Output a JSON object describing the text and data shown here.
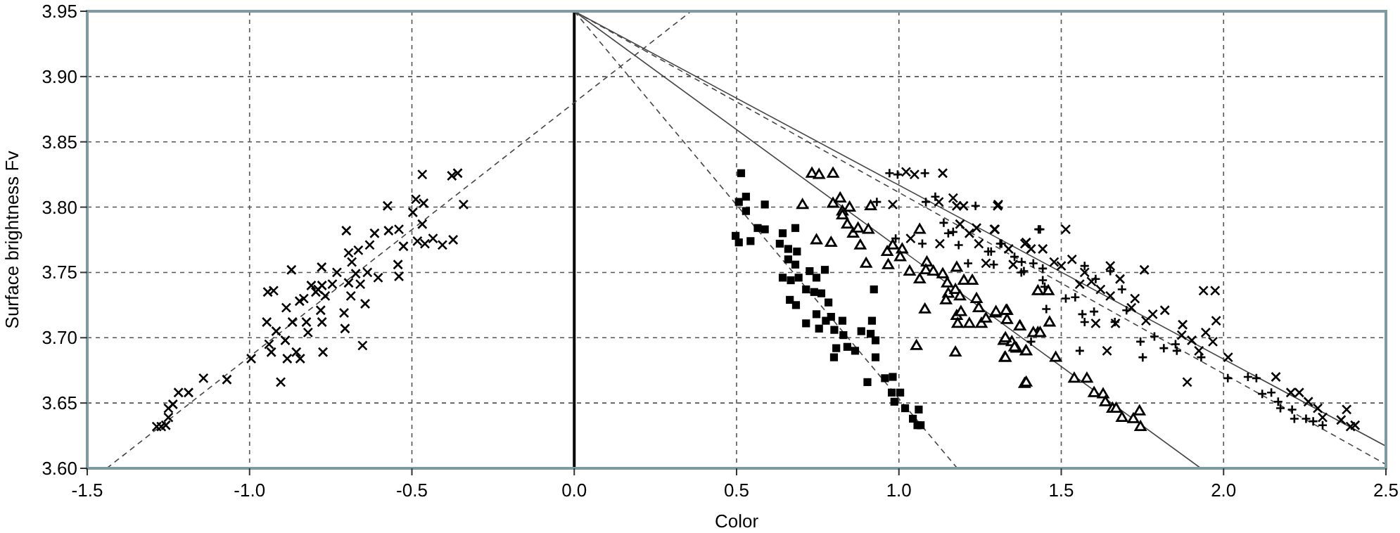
{
  "chart_data": {
    "type": "scatter",
    "xlabel": "Color",
    "ylabel": "Surface brightness Fv",
    "xlim": [
      -1.5,
      2.5
    ],
    "ylim": [
      3.6,
      3.95
    ],
    "xticks": [
      -1.5,
      {
        "value": -1,
        "label": "-1.0"
      },
      -0.5,
      {
        "value": 0,
        "label": "0.0"
      },
      0.5,
      {
        "value": 1,
        "label": "1.0"
      },
      1.5,
      {
        "value": 2,
        "label": "2.0"
      },
      2.5
    ],
    "yticks": [
      {
        "value": 3.6,
        "label": "3.60"
      },
      3.65,
      {
        "value": 3.7,
        "label": "3.70"
      },
      3.75,
      {
        "value": 3.8,
        "label": "3.80"
      },
      3.85,
      {
        "value": 3.9,
        "label": "3.90"
      },
      3.95
    ],
    "grid": true,
    "ref_lines": [
      {
        "axis": "x",
        "value": 0,
        "color": "#000000",
        "line_style": "solid"
      }
    ],
    "series": [
      {
        "marker": "cross",
        "color": "#000000",
        "x": [
          -1.286,
          -1.272,
          -1.258,
          -1.25,
          -1.25,
          -1.236,
          -1.219,
          -1.188,
          -1.142,
          -1.07,
          -0.995,
          -0.904,
          -0.947,
          -0.944,
          -0.926,
          -0.94,
          -0.918,
          -0.933,
          -0.89,
          -0.884,
          -0.871,
          -0.887,
          -0.868,
          -0.846,
          -0.856,
          -0.844,
          -0.825,
          -0.82,
          -0.833,
          -0.81,
          -0.796,
          -0.789,
          -0.778,
          -0.777,
          -0.767,
          -0.781,
          -0.777,
          -0.774,
          -0.745,
          -0.731,
          -0.709,
          -0.706,
          -0.702,
          -0.695,
          -0.695,
          -0.688,
          -0.685,
          -0.673,
          -0.665,
          -0.659,
          -0.652,
          -0.644,
          -0.637,
          -0.63,
          -0.615,
          -0.604,
          -0.575,
          -0.572,
          -0.543,
          -0.54,
          -0.54,
          -0.526,
          -0.497,
          -0.488,
          -0.483,
          -0.468,
          -0.468,
          -0.464,
          -0.46,
          -0.435,
          -0.406,
          -0.377,
          -0.359,
          -0.373,
          -0.341
        ],
        "values": [
          3.632,
          3.632,
          3.633,
          3.639,
          3.646,
          3.649,
          3.658,
          3.658,
          3.669,
          3.668,
          3.684,
          3.666,
          3.712,
          3.735,
          3.736,
          3.695,
          3.705,
          3.689,
          3.698,
          3.684,
          3.752,
          3.723,
          3.712,
          3.728,
          3.689,
          3.684,
          3.712,
          3.704,
          3.73,
          3.74,
          3.735,
          3.737,
          3.754,
          3.74,
          3.732,
          3.721,
          3.712,
          3.689,
          3.741,
          3.75,
          3.719,
          3.707,
          3.782,
          3.765,
          3.742,
          3.732,
          3.758,
          3.749,
          3.767,
          3.741,
          3.694,
          3.726,
          3.75,
          3.771,
          3.78,
          3.746,
          3.801,
          3.782,
          3.756,
          3.747,
          3.783,
          3.77,
          3.796,
          3.806,
          3.774,
          3.825,
          3.787,
          3.803,
          3.772,
          3.776,
          3.771,
          3.824,
          3.826,
          3.775,
          3.802
        ]
      },
      {
        "marker": "square",
        "color": "#000000",
        "x": [
          0.514,
          0.507,
          0.529,
          0.529,
          0.587,
          0.497,
          0.507,
          0.543,
          0.565,
          0.587,
          0.642,
          0.681,
          0.633,
          0.659,
          0.686,
          0.659,
          0.681,
          0.642,
          0.667,
          0.691,
          0.725,
          0.746,
          0.772,
          0.714,
          0.739,
          0.761,
          0.783,
          0.664,
          0.683,
          0.746,
          0.791,
          0.714,
          0.754,
          0.775,
          0.801,
          0.826,
          0.829,
          0.807,
          0.8,
          0.841,
          0.865,
          0.884,
          0.917,
          0.923,
          0.913,
          0.928,
          0.928,
          0.903,
          0.957,
          0.981,
          0.978,
          1.004,
          0.986,
          1.019,
          1.061,
          1.043,
          1.057,
          1.067
        ],
        "values": [
          3.826,
          3.804,
          3.808,
          3.797,
          3.802,
          3.778,
          3.773,
          3.774,
          3.784,
          3.783,
          3.78,
          3.784,
          3.772,
          3.768,
          3.766,
          3.76,
          3.756,
          3.746,
          3.744,
          3.746,
          3.751,
          3.746,
          3.752,
          3.737,
          3.735,
          3.734,
          3.727,
          3.729,
          3.725,
          3.718,
          3.716,
          3.711,
          3.707,
          3.713,
          3.706,
          3.713,
          3.702,
          3.692,
          3.685,
          3.693,
          3.69,
          3.705,
          3.713,
          3.737,
          3.703,
          3.698,
          3.685,
          3.666,
          3.669,
          3.67,
          3.658,
          3.658,
          3.651,
          3.646,
          3.645,
          3.638,
          3.633,
          3.633
        ]
      },
      {
        "marker": "triangle",
        "color": "#000000",
        "x": [
          0.732,
          0.754,
          0.797,
          0.703,
          0.797,
          0.819,
          0.826,
          0.848,
          0.913,
          0.826,
          0.841,
          0.859,
          0.874,
          0.906,
          0.746,
          0.791,
          0.881,
          0.899,
          0.967,
          0.964,
          0.981,
          1.01,
          1.004,
          1.033,
          1.064,
          1.086,
          1.064,
          1.083,
          1.106,
          1.135,
          1.149,
          1.178,
          1.2,
          1.226,
          1.152,
          1.174,
          1.188,
          1.145,
          1.239,
          1.08,
          1.178,
          1.191,
          1.246,
          1.181,
          1.217,
          1.254,
          1.268,
          1.297,
          1.333,
          1.333,
          1.373,
          1.323,
          1.348,
          1.362,
          1.391,
          1.428,
          1.326,
          1.174,
          1.054,
          1.387,
          1.428,
          1.46,
          1.33,
          1.299,
          1.372,
          1.464,
          1.414,
          1.435,
          1.328,
          1.356,
          1.392,
          1.328,
          1.483,
          1.392,
          1.54,
          1.579,
          1.601,
          1.629,
          1.636,
          1.658,
          1.669,
          1.741,
          1.687,
          1.722,
          1.744
        ],
        "values": [
          3.826,
          3.825,
          3.826,
          3.802,
          3.803,
          3.807,
          3.797,
          3.8,
          3.801,
          3.794,
          3.787,
          3.78,
          3.784,
          3.783,
          3.775,
          3.773,
          3.771,
          3.757,
          3.756,
          3.766,
          3.771,
          3.768,
          3.762,
          3.751,
          3.783,
          3.758,
          3.745,
          3.752,
          3.751,
          3.749,
          3.742,
          3.754,
          3.744,
          3.744,
          3.734,
          3.737,
          3.732,
          3.729,
          3.73,
          3.722,
          3.717,
          3.72,
          3.723,
          3.711,
          3.711,
          3.711,
          3.715,
          3.719,
          3.721,
          3.714,
          3.709,
          3.698,
          3.697,
          3.692,
          3.69,
          3.704,
          3.685,
          3.689,
          3.694,
          3.665,
          3.736,
          3.736,
          3.721,
          3.72,
          3.709,
          3.712,
          3.704,
          3.704,
          3.7,
          3.693,
          3.69,
          3.685,
          3.685,
          3.666,
          3.669,
          3.669,
          3.658,
          3.657,
          3.651,
          3.646,
          3.646,
          3.644,
          3.639,
          3.638,
          3.632
        ]
      },
      {
        "marker": "plus",
        "color": "#000000",
        "x": [
          0.971,
          0.996,
          1.08,
          0.932,
          1.083,
          1.112,
          1.138,
          1.152,
          1.167,
          0.99,
          1.072,
          1.184,
          1.236,
          1.213,
          1.275,
          1.312,
          1.377,
          1.43,
          1.435,
          1.316,
          1.356,
          1.378,
          1.292,
          1.284,
          1.385,
          1.414,
          1.443,
          1.443,
          1.449,
          1.514,
          1.543,
          1.565,
          1.572,
          1.601,
          1.454,
          1.407,
          1.557,
          1.572,
          1.606,
          1.651,
          1.687,
          1.665,
          1.701,
          1.751,
          1.744,
          1.787,
          1.816,
          1.856,
          1.852,
          1.931,
          2.013,
          2.075,
          2.101,
          2.119,
          2.147,
          2.168,
          2.175,
          2.218,
          2.254,
          2.276,
          2.305,
          2.211
        ],
        "values": [
          3.826,
          3.825,
          3.826,
          3.804,
          3.804,
          3.808,
          3.788,
          3.78,
          3.781,
          3.776,
          3.772,
          3.771,
          3.801,
          3.757,
          3.766,
          3.772,
          3.75,
          3.783,
          3.783,
          3.772,
          3.762,
          3.758,
          3.756,
          3.766,
          3.751,
          3.757,
          3.753,
          3.744,
          3.739,
          3.73,
          3.731,
          3.718,
          3.712,
          3.72,
          3.722,
          3.697,
          3.69,
          3.755,
          3.745,
          3.751,
          3.737,
          3.712,
          3.721,
          3.685,
          3.697,
          3.701,
          3.692,
          3.69,
          3.695,
          3.685,
          3.669,
          3.67,
          3.669,
          3.657,
          3.658,
          3.651,
          3.646,
          3.638,
          3.638,
          3.636,
          3.633,
          3.645
        ]
      },
      {
        "marker": "cross",
        "color": "#000000",
        "x": [
          1.022,
          1.048,
          1.135,
          0.981,
          1.123,
          1.167,
          1.178,
          1.199,
          1.304,
          1.188,
          1.217,
          1.239,
          1.036,
          1.126,
          1.246,
          1.268,
          1.294,
          1.338,
          1.388,
          1.352,
          1.306,
          1.296,
          1.514,
          1.392,
          1.443,
          1.407,
          1.478,
          1.5,
          1.533,
          1.572,
          1.557,
          1.593,
          1.621,
          1.651,
          1.681,
          1.651,
          1.716,
          1.727,
          1.756,
          1.761,
          1.782,
          1.819,
          1.641,
          1.606,
          1.667,
          1.874,
          1.871,
          1.902,
          1.924,
          1.945,
          1.938,
          1.974,
          1.977,
          1.967,
          1.888,
          2.014,
          2.161,
          2.207,
          2.233,
          2.261,
          2.29,
          2.305,
          2.379,
          2.362,
          2.391,
          2.405
        ],
        "values": [
          3.827,
          3.825,
          3.826,
          3.802,
          3.804,
          3.807,
          3.801,
          3.801,
          3.801,
          3.787,
          3.78,
          3.784,
          3.776,
          3.772,
          3.772,
          3.757,
          3.783,
          3.768,
          3.772,
          3.756,
          3.802,
          3.783,
          3.783,
          3.773,
          3.768,
          3.768,
          3.758,
          3.755,
          3.76,
          3.75,
          3.741,
          3.743,
          3.737,
          3.755,
          3.745,
          3.732,
          3.723,
          3.73,
          3.752,
          3.713,
          3.718,
          3.721,
          3.69,
          3.711,
          3.711,
          3.71,
          3.702,
          3.698,
          3.69,
          3.704,
          3.736,
          3.736,
          3.713,
          3.697,
          3.666,
          3.685,
          3.67,
          3.658,
          3.658,
          3.651,
          3.646,
          3.639,
          3.645,
          3.637,
          3.632,
          3.633
        ]
      },
      {
        "type": "line",
        "marker": "none",
        "line_style": "dashed",
        "color": "#444444",
        "x": [
          -1.44,
          0.36
        ],
        "values": [
          3.6,
          3.95
        ]
      },
      {
        "type": "line",
        "marker": "none",
        "line_style": "solid",
        "color": "#444444",
        "x": [
          0,
          2.5
        ],
        "values": [
          3.95,
          3.617
        ]
      },
      {
        "type": "line",
        "marker": "none",
        "line_style": "dashed",
        "color": "#444444",
        "x": [
          0,
          2.5
        ],
        "values": [
          3.95,
          3.603
        ]
      },
      {
        "type": "line",
        "marker": "none",
        "line_style": "solid",
        "color": "#444444",
        "x": [
          0,
          1.93
        ],
        "values": [
          3.95,
          3.6
        ]
      },
      {
        "type": "line",
        "marker": "none",
        "line_style": "dashed",
        "color": "#444444",
        "x": [
          0,
          1.18
        ],
        "values": [
          3.95,
          3.6
        ]
      }
    ]
  }
}
